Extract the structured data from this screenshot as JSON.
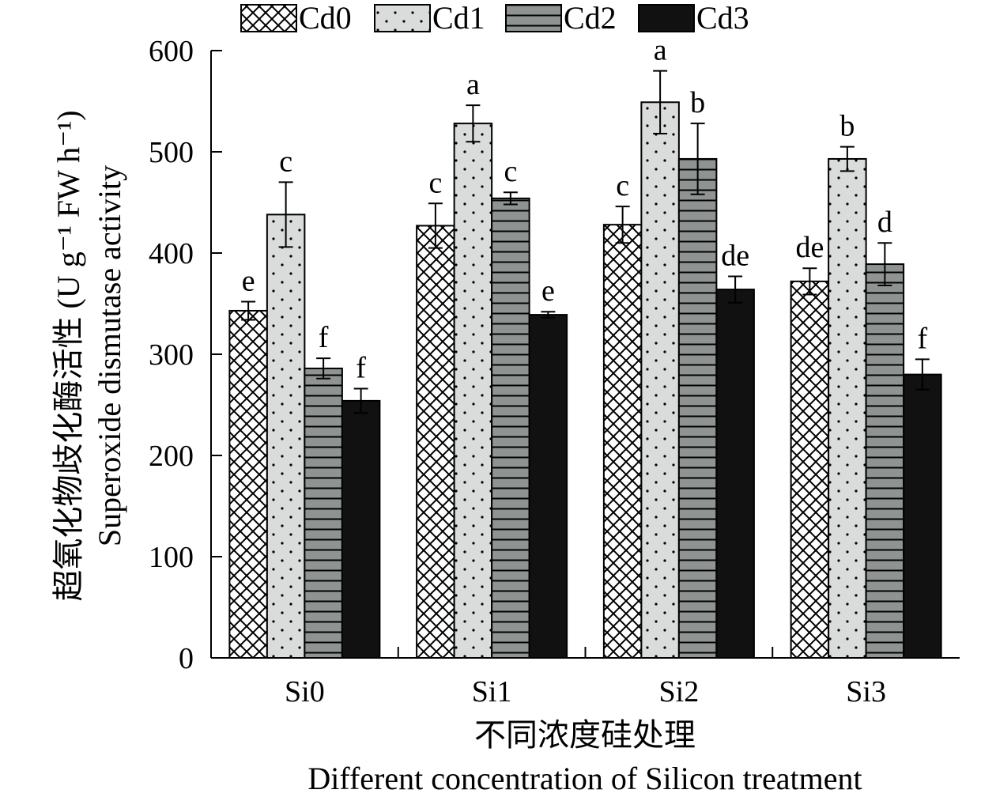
{
  "chart_data": {
    "type": "bar",
    "categories": [
      "Si0",
      "Si1",
      "Si2",
      "Si3"
    ],
    "series": [
      {
        "name": "Cd0",
        "values": [
          343,
          427,
          428,
          372
        ],
        "errors": [
          9,
          22,
          18,
          13
        ],
        "labels": [
          "e",
          "c",
          "c",
          "de"
        ]
      },
      {
        "name": "Cd1",
        "values": [
          438,
          528,
          549,
          493
        ],
        "errors": [
          32,
          18,
          31,
          12
        ],
        "labels": [
          "c",
          "a",
          "a",
          "b"
        ]
      },
      {
        "name": "Cd2",
        "values": [
          286,
          454,
          493,
          389
        ],
        "errors": [
          10,
          6,
          35,
          21
        ],
        "labels": [
          "f",
          "c",
          "b",
          "d"
        ]
      },
      {
        "name": "Cd3",
        "values": [
          254,
          339,
          364,
          280
        ],
        "errors": [
          12,
          3,
          13,
          15
        ],
        "labels": [
          "f",
          "e",
          "de",
          "f"
        ]
      }
    ],
    "ylim": [
      0,
      600
    ],
    "yticks": [
      0,
      100,
      200,
      300,
      400,
      500,
      600
    ],
    "ylabel_cn": "超氧化物歧化酶活性 (U g⁻¹ FW h⁻¹)",
    "ylabel_en": "Superoxide dismutase activity",
    "xlabel_cn": "不同浓度硅处理",
    "xlabel_en": "Different concentration of Silicon treatment",
    "legend_position": "top",
    "grid": false,
    "colors": {
      "Cd0": "#ffffff",
      "Cd1": "#d9dcdb",
      "Cd2": "#8f9493",
      "Cd3": "#111111"
    }
  }
}
